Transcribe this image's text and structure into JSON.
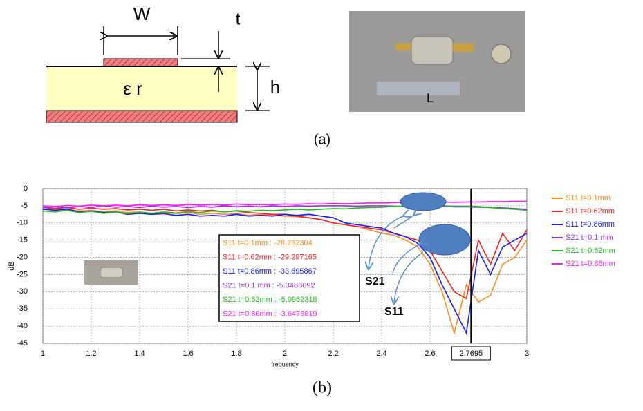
{
  "figure_a": {
    "w": "W",
    "t": "t",
    "er": "ε r",
    "h": "h",
    "l": "L",
    "caption": "(a)"
  },
  "chart_data": {
    "type": "line",
    "x": [
      1,
      1.05,
      1.1,
      1.15,
      1.2,
      1.25,
      1.3,
      1.35,
      1.4,
      1.45,
      1.5,
      1.55,
      1.6,
      1.65,
      1.7,
      1.75,
      1.8,
      1.85,
      1.9,
      1.95,
      2,
      2.05,
      2.1,
      2.15,
      2.2,
      2.25,
      2.3,
      2.35,
      2.4,
      2.45,
      2.5,
      2.55,
      2.6,
      2.65,
      2.7,
      2.75,
      2.8,
      2.85,
      2.9,
      2.95,
      3
    ],
    "series": [
      {
        "name": "S11 t=0.1mm",
        "color": "#ff8c1a",
        "values": [
          -6,
          -6.2,
          -6,
          -6.5,
          -6.3,
          -6.8,
          -6.5,
          -7,
          -6.8,
          -7.2,
          -7,
          -7.3,
          -7,
          -7.5,
          -7.2,
          -7.5,
          -7.3,
          -7.8,
          -7.5,
          -7.8,
          -8,
          -8.2,
          -8.5,
          -9,
          -10,
          -10.5,
          -11,
          -12,
          -13,
          -13.5,
          -15,
          -17,
          -22,
          -30,
          -42,
          -28,
          -33,
          -31,
          -22,
          -20,
          -15
        ]
      },
      {
        "name": "S11 t=0.62mm",
        "color": "#ff2020",
        "values": [
          -5.5,
          -5.8,
          -5.5,
          -6,
          -5.7,
          -6,
          -5.8,
          -6.2,
          -6,
          -6.3,
          -6,
          -6.5,
          -6.2,
          -6.5,
          -6.3,
          -6.8,
          -6.5,
          -7,
          -7.2,
          -7.5,
          -7.5,
          -8,
          -8.5,
          -9,
          -10,
          -10.5,
          -11,
          -11.5,
          -12,
          -13,
          -14,
          -15,
          -18,
          -24,
          -30,
          -32,
          -15,
          -22,
          -13,
          -18,
          -12
        ]
      },
      {
        "name": "S11 t=0.86mm",
        "color": "#1a1aff",
        "values": [
          -6,
          -6.3,
          -6,
          -6.8,
          -6.5,
          -7,
          -6.8,
          -7.5,
          -7.2,
          -7.5,
          -7.3,
          -7.8,
          -7.5,
          -8,
          -7.8,
          -8,
          -7.5,
          -8,
          -7.8,
          -8,
          -7.5,
          -7.8,
          -7.5,
          -8,
          -8.5,
          -10,
          -10.5,
          -11,
          -11.5,
          -13,
          -14,
          -16,
          -20,
          -28,
          -35,
          -42,
          -18,
          -25,
          -17,
          -15,
          -13
        ]
      },
      {
        "name": "S21 t=0.1 mm",
        "color": "#9a2ee6",
        "values": [
          -5.5,
          -5.3,
          -5.6,
          -5.2,
          -5.5,
          -5,
          -5.4,
          -5.2,
          -5.5,
          -5.1,
          -5.4,
          -5.2,
          -5.5,
          -5.2,
          -5.4,
          -5,
          -5.3,
          -5.1,
          -5.3,
          -5,
          -5.2,
          -5,
          -5.1,
          -5,
          -5,
          -5,
          -5.1,
          -5,
          -5,
          -5.1,
          -5.2,
          -5.1,
          -5.2,
          -5.1,
          -5.3,
          -5.3,
          -5.4,
          -5.5,
          -5.6,
          -5.8,
          -6
        ]
      },
      {
        "name": "S21 t=0.62mm",
        "color": "#1fbf1f",
        "values": [
          -6.5,
          -6.8,
          -6.3,
          -7,
          -6.6,
          -7.2,
          -6.8,
          -7.3,
          -6.9,
          -7.2,
          -6.8,
          -7.1,
          -6.7,
          -7,
          -6.5,
          -6.8,
          -6.4,
          -6.6,
          -6.3,
          -6.4,
          -6.2,
          -6,
          -6.2,
          -6,
          -5.8,
          -5.9,
          -5.6,
          -5.5,
          -5.4,
          -5.2,
          -5.1,
          -5,
          -5,
          -5,
          -5.1,
          -5.1,
          -5.2,
          -5.5,
          -5.8,
          -6,
          -6.3
        ]
      },
      {
        "name": "S21 t=0.86mm",
        "color": "#ff1aff",
        "values": [
          -5,
          -5.2,
          -4.9,
          -5.1,
          -4.8,
          -5,
          -4.8,
          -5,
          -4.7,
          -4.9,
          -4.7,
          -4.9,
          -4.6,
          -4.8,
          -4.6,
          -4.8,
          -4.5,
          -4.7,
          -4.6,
          -4.7,
          -4.5,
          -4.6,
          -4.4,
          -4.5,
          -4.3,
          -4.4,
          -4.3,
          -4.2,
          -4.2,
          -4.1,
          -4,
          -4,
          -4,
          -3.9,
          -4,
          -3.9,
          -3.9,
          -3.8,
          -3.8,
          -3.7,
          -3.7
        ]
      }
    ],
    "xlim": [
      1,
      3
    ],
    "ylim": [
      -45,
      0
    ],
    "xticks": [
      1,
      1.2,
      1.4,
      1.6,
      1.8,
      2,
      2.2,
      2.4,
      2.6,
      3
    ],
    "yticks": [
      0,
      -5,
      -10,
      -15,
      -20,
      -25,
      -30,
      -35,
      -40,
      -45
    ],
    "grid": true,
    "legend": "right",
    "xlabel": "frequency",
    "ylabel": "dB",
    "marker_x": 2.7695,
    "readouts": [
      "S11 t=0.1mm : -28.232304",
      "S11 t=0.62mm : -29.297165",
      "S11 t=0.86mm : -33.695867",
      "S21 t=0.1 mm : -5.3486092",
      "S21 t=0.62mm : -5.0952318",
      "S21 t=0.86mm : -3.6476819"
    ],
    "annotations": [
      "S21",
      "S11"
    ]
  },
  "caption_b": "(b)"
}
